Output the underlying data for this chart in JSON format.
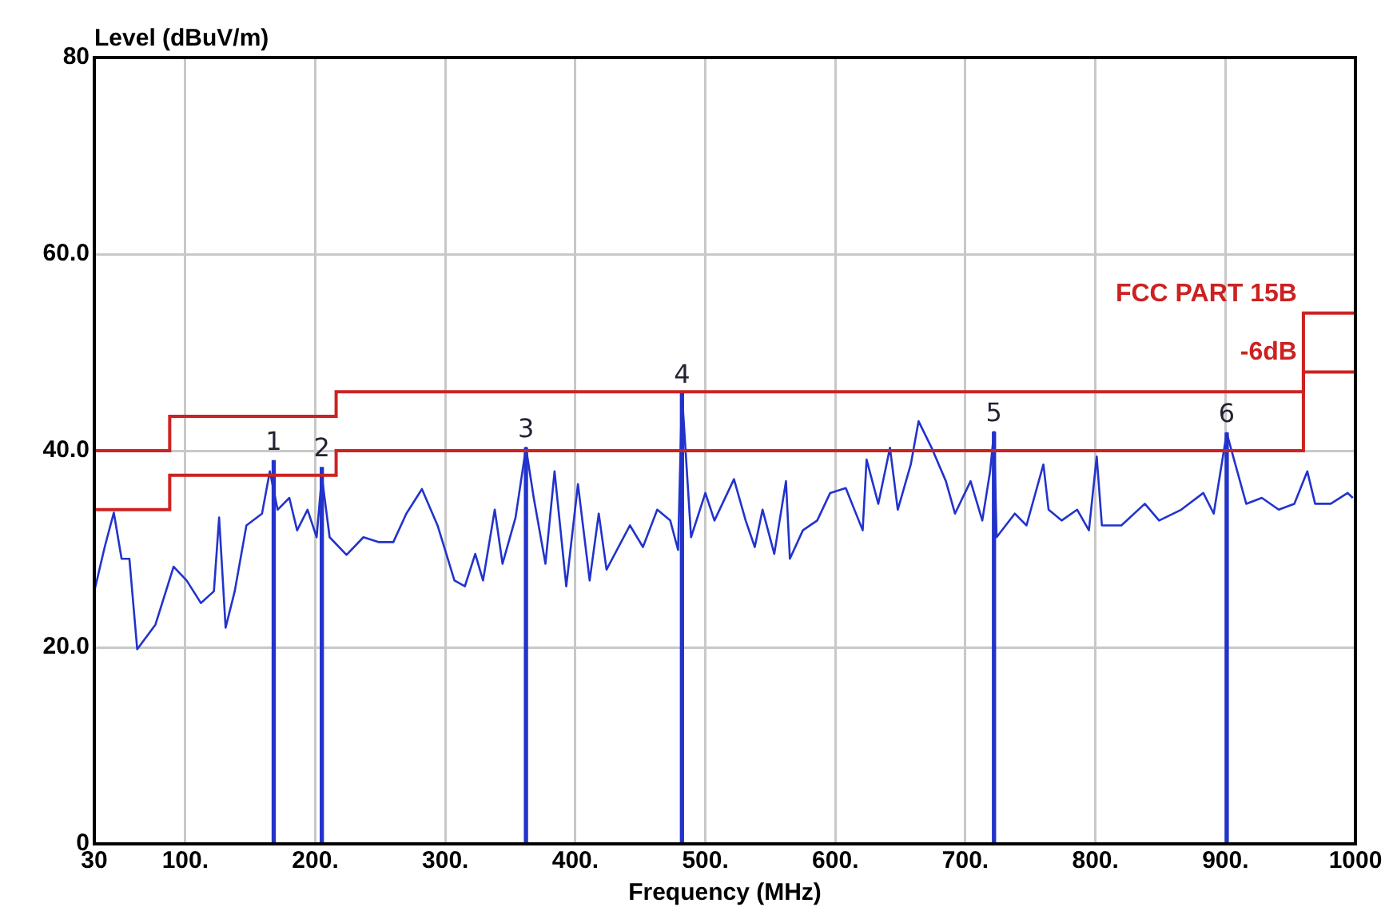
{
  "chart_data": {
    "type": "line",
    "xlabel": "Frequency (MHz)",
    "ylabel": "Level (dBuV/m)",
    "xlim": [
      30,
      1000
    ],
    "ylim": [
      0,
      80
    ],
    "xticks": [
      30,
      {
        "value": 100,
        "label": "100."
      },
      {
        "value": 200,
        "label": "200."
      },
      {
        "value": 300,
        "label": "300."
      },
      {
        "value": 400,
        "label": "400."
      },
      {
        "value": 500,
        "label": "500."
      },
      {
        "value": 600,
        "label": "600."
      },
      {
        "value": 700,
        "label": "700."
      },
      {
        "value": 800,
        "label": "800."
      },
      {
        "value": 900,
        "label": "900."
      },
      1000
    ],
    "yticks": [
      0,
      {
        "value": 20,
        "label": "20.0"
      },
      {
        "value": 40,
        "label": "40.0"
      },
      {
        "value": 60,
        "label": "60.0"
      },
      80
    ],
    "grid": true,
    "legend": false,
    "marker": "none",
    "line_style": "solid",
    "series": [
      {
        "name": "FCC PART 15B",
        "type": "step",
        "color": "#cc2222",
        "x": [
          30,
          88,
          216,
          960,
          1000
        ],
        "values": [
          40,
          43.5,
          46,
          54,
          54
        ]
      },
      {
        "name": "-6dB",
        "type": "step",
        "color": "#cc2222",
        "x": [
          30,
          88,
          216,
          960,
          1000
        ],
        "values": [
          34,
          37.5,
          40,
          48,
          48
        ]
      },
      {
        "color": "#2233cc",
        "x": [
          30,
          38,
          45,
          51,
          57,
          63,
          77,
          91,
          101,
          112,
          122,
          126,
          131,
          138,
          147,
          159,
          165,
          171,
          180,
          186,
          194,
          201,
          205,
          211,
          224,
          237,
          249,
          260,
          270,
          282,
          294,
          307,
          315,
          323,
          329,
          338,
          344,
          354,
          362,
          368,
          377,
          384,
          393,
          402,
          411,
          418,
          424,
          442,
          452,
          463,
          473,
          479,
          482,
          489,
          500,
          507,
          522,
          531,
          538,
          544,
          553,
          562,
          565,
          575,
          586,
          596,
          608,
          621,
          624,
          633,
          642,
          648,
          658,
          664,
          674,
          685,
          692,
          704,
          713,
          719,
          722,
          724,
          738,
          747,
          760,
          764,
          774,
          786,
          795,
          801,
          805,
          820,
          838,
          849,
          866,
          883,
          891,
          901,
          916,
          928,
          941,
          953,
          963,
          969,
          981,
          994,
          998
        ],
        "values": [
          25.7,
          30.2,
          33.7,
          29,
          29,
          19.8,
          22.3,
          28.2,
          26.8,
          24.5,
          25.7,
          33.2,
          22,
          25.7,
          32.4,
          33.6,
          37.9,
          34,
          35.2,
          31.9,
          34,
          31.2,
          37.4,
          31.2,
          29.4,
          31.2,
          30.7,
          30.7,
          33.6,
          36.1,
          32.4,
          26.8,
          26.2,
          29.5,
          26.8,
          34,
          28.5,
          33.2,
          40.3,
          35.2,
          28.5,
          37.9,
          26.2,
          36.6,
          26.8,
          33.6,
          27.9,
          32.4,
          30.2,
          34,
          32.9,
          29.9,
          45.8,
          31.2,
          35.7,
          32.9,
          37.1,
          32.9,
          30.2,
          34,
          29.5,
          36.9,
          29,
          31.9,
          32.9,
          35.7,
          36.2,
          31.9,
          39.1,
          34.6,
          40.3,
          34,
          38.6,
          43,
          40.3,
          36.9,
          33.6,
          36.9,
          32.9,
          37.9,
          41.9,
          31.2,
          33.6,
          32.4,
          38.6,
          34,
          32.9,
          34,
          31.9,
          39.4,
          32.4,
          32.4,
          34.6,
          32.9,
          34,
          35.7,
          33.6,
          41.8,
          34.6,
          35.2,
          34,
          34.6,
          37.9,
          34.6,
          34.6,
          35.7,
          35.2
        ]
      },
      {
        "type": "bar",
        "color": "#2233cc",
        "x": [
          168,
          205,
          362,
          482,
          722,
          901
        ],
        "values": [
          39,
          38.3,
          40.3,
          45.8,
          41.9,
          41.8
        ]
      }
    ],
    "annotations": [
      {
        "text": "1",
        "x": 168,
        "y": 39
      },
      {
        "text": "2",
        "x": 205,
        "y": 38.3
      },
      {
        "text": "3",
        "x": 362,
        "y": 40.3
      },
      {
        "text": "4",
        "x": 482,
        "y": 45.8
      },
      {
        "text": "5",
        "x": 722,
        "y": 41.9
      },
      {
        "text": "6",
        "x": 901,
        "y": 41.8
      }
    ]
  }
}
